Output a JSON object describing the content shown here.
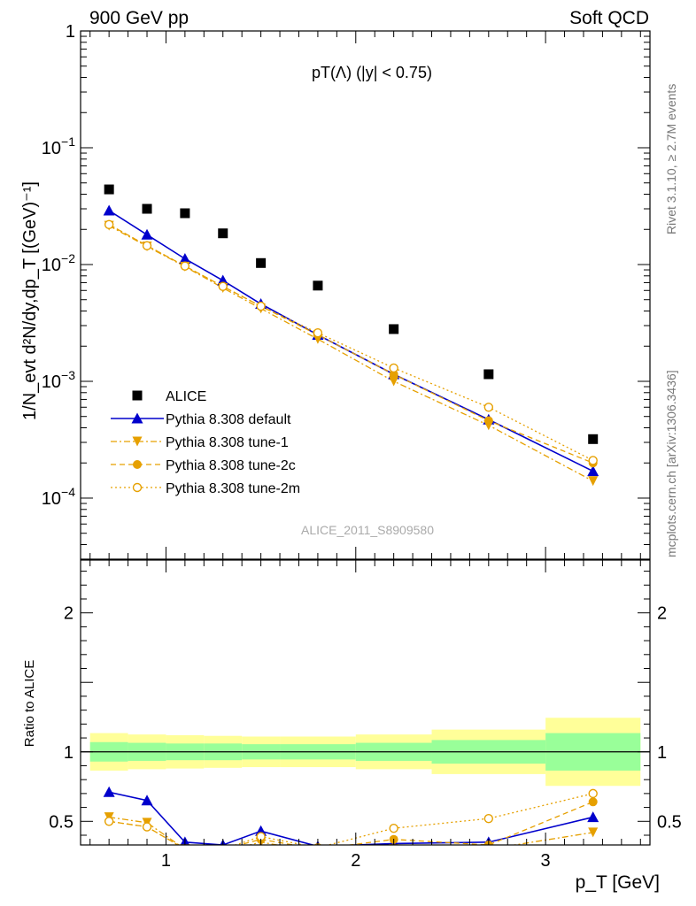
{
  "header": {
    "left": "900 GeV pp",
    "right": "Soft QCD"
  },
  "side": {
    "rivet": "Rivet 3.1.10, ≥ 2.7M events",
    "mcplots": "mcplots.cern.ch [arXiv:1306.3436]"
  },
  "chart_data": [
    {
      "type": "scatter",
      "title": "pT(Λ) (|y| < 0.75)",
      "ylabel": "1/N_evt d²N/dy,dp_T [(GeV)⁻¹]",
      "yscale": "log",
      "ylim": [
        3e-05,
        1.0
      ],
      "xlim": [
        0.55,
        3.55
      ],
      "y_ticks": [
        "10^-4",
        "10^-3",
        "10^-2",
        "10^-1",
        "1"
      ],
      "analysis_label": "ALICE_2011_S8909580",
      "legend_position": "lower-left",
      "series": [
        {
          "name": "ALICE",
          "color": "#000000",
          "marker": "square",
          "line": "none",
          "x": [
            0.7,
            0.9,
            1.1,
            1.3,
            1.5,
            1.8,
            2.2,
            2.7,
            3.25
          ],
          "y": [
            0.044,
            0.03,
            0.0275,
            0.0185,
            0.0103,
            0.0066,
            0.0028,
            0.00115,
            0.00032
          ],
          "bin_edges": [
            0.6,
            0.8,
            1.0,
            1.2,
            1.4,
            1.6,
            2.0,
            2.4,
            3.0,
            3.5
          ]
        },
        {
          "name": "Pythia 8.308 default",
          "color": "#0000cc",
          "marker": "triangle-up",
          "line": "solid",
          "x": [
            0.7,
            0.9,
            1.1,
            1.3,
            1.5,
            1.8,
            2.2,
            2.7,
            3.25
          ],
          "y": [
            0.029,
            0.018,
            0.0112,
            0.0073,
            0.0046,
            0.0025,
            0.00115,
            0.00047,
            0.00017
          ]
        },
        {
          "name": "Pythia 8.308 tune-1",
          "color": "#e6a000",
          "marker": "triangle-down",
          "line": "dashdot",
          "x": [
            0.7,
            0.9,
            1.1,
            1.3,
            1.5,
            1.8,
            2.2,
            2.7,
            3.25
          ],
          "y": [
            0.0215,
            0.0143,
            0.0096,
            0.0063,
            0.0042,
            0.0023,
            0.001,
            0.00042,
            0.00014
          ]
        },
        {
          "name": "Pythia 8.308 tune-2c",
          "color": "#e6a000",
          "marker": "circle",
          "line": "dashed",
          "x": [
            0.7,
            0.9,
            1.1,
            1.3,
            1.5,
            1.8,
            2.2,
            2.7,
            3.25
          ],
          "y": [
            0.022,
            0.0145,
            0.0097,
            0.0065,
            0.0044,
            0.0025,
            0.00115,
            0.00046,
            0.0002
          ]
        },
        {
          "name": "Pythia 8.308 tune-2m",
          "color": "#e6a000",
          "marker": "open-circle",
          "line": "dotted",
          "x": [
            0.7,
            0.9,
            1.1,
            1.3,
            1.5,
            1.8,
            2.2,
            2.7,
            3.25
          ],
          "y": [
            0.022,
            0.0145,
            0.0097,
            0.0065,
            0.0044,
            0.0026,
            0.0013,
            0.0006,
            0.00021
          ]
        }
      ]
    },
    {
      "type": "scatter",
      "ylabel": "Ratio to ALICE",
      "xlabel": "p_T [GeV]",
      "ylim": [
        0.33,
        2.38
      ],
      "xlim": [
        0.55,
        3.55
      ],
      "x_ticks": [
        1,
        2,
        3
      ],
      "y_ticks": [
        0.5,
        1,
        2
      ],
      "reference_line": 1,
      "bands": {
        "bin_edges": [
          0.6,
          0.8,
          1.0,
          1.2,
          1.4,
          1.6,
          2.0,
          2.4,
          3.0,
          3.5
        ],
        "stat_color": "#99ff99",
        "total_color": "#ffff99",
        "stat": [
          0.07,
          0.065,
          0.06,
          0.06,
          0.055,
          0.055,
          0.065,
          0.085,
          0.135
        ],
        "total": [
          0.135,
          0.125,
          0.12,
          0.115,
          0.11,
          0.11,
          0.125,
          0.16,
          0.245
        ]
      },
      "series": [
        {
          "name": "Pythia 8.308 default",
          "color": "#0000cc",
          "marker": "triangle-up",
          "line": "solid",
          "x": [
            0.7,
            0.9,
            1.1,
            1.3,
            1.5,
            1.8,
            2.2,
            2.7,
            3.25
          ],
          "y": [
            0.71,
            0.65,
            0.35,
            0.33,
            0.43,
            0.32,
            0.34,
            0.35,
            0.53
          ]
        },
        {
          "name": "Pythia 8.308 tune-1",
          "color": "#e6a000",
          "marker": "triangle-down",
          "line": "dashdot",
          "x": [
            0.7,
            0.9,
            1.1,
            1.3,
            1.5,
            1.8,
            2.2,
            2.7,
            3.25
          ],
          "y": [
            0.53,
            0.49,
            0.3,
            0.28,
            0.35,
            0.28,
            0.3,
            0.3,
            0.42
          ]
        },
        {
          "name": "Pythia 8.308 tune-2c",
          "color": "#e6a000",
          "marker": "circle",
          "line": "dashed",
          "x": [
            0.7,
            0.9,
            1.1,
            1.3,
            1.5,
            1.8,
            2.2,
            2.7,
            3.25
          ],
          "y": [
            0.5,
            0.46,
            0.3,
            0.3,
            0.37,
            0.3,
            0.37,
            0.33,
            0.64
          ]
        },
        {
          "name": "Pythia 8.308 tune-2m",
          "color": "#e6a000",
          "marker": "open-circle",
          "line": "dotted",
          "x": [
            0.7,
            0.9,
            1.1,
            1.3,
            1.5,
            1.8,
            2.2,
            2.7,
            3.25
          ],
          "y": [
            0.5,
            0.46,
            0.3,
            0.3,
            0.39,
            0.31,
            0.45,
            0.52,
            0.7
          ]
        }
      ]
    }
  ]
}
